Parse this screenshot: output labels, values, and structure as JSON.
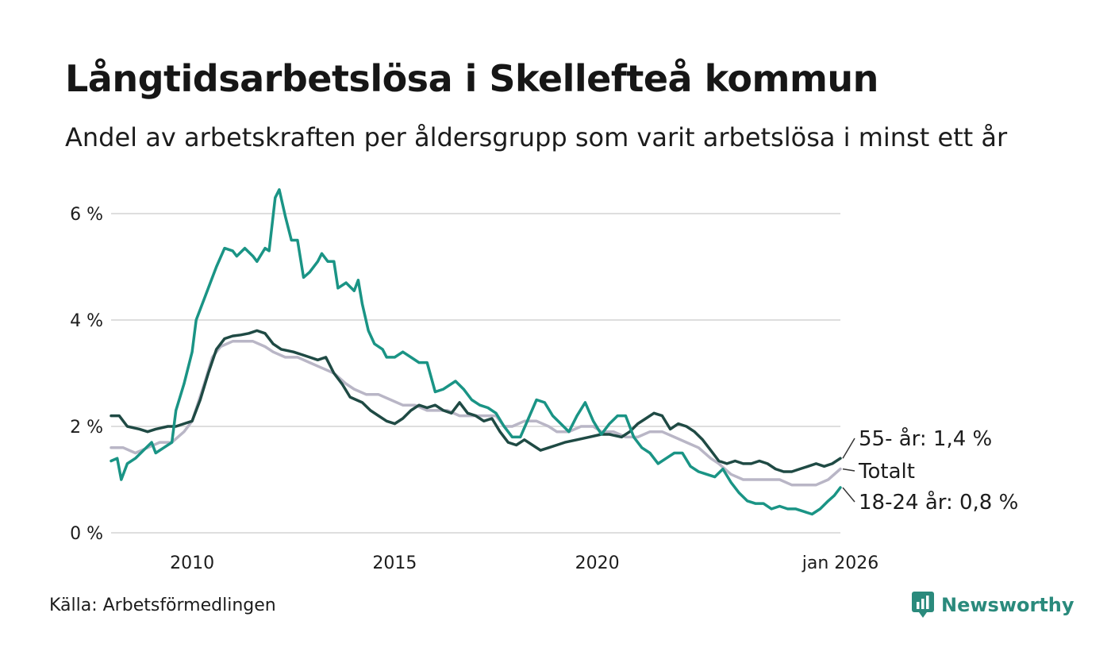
{
  "title": "Långtidsarbetslösa i Skellefteå kommun",
  "subtitle": "Andel av arbetskraften per åldersgrupp som varit arbetslösa i minst ett år",
  "source": "Källa: Arbetsförmedlingen",
  "brand": "Newsworthy",
  "colors": {
    "old": "#1f4a44",
    "young": "#1a9485",
    "total": "#b9b6c6",
    "grid": "#dedede",
    "brand": "#2a8a7c"
  },
  "chart_data": {
    "type": "line",
    "title": "Långtidsarbetslösa i Skellefteå kommun",
    "xlabel": "",
    "ylabel": "",
    "xlim": [
      2008.0,
      2026.0
    ],
    "ylim": [
      0,
      6.6
    ],
    "y_ticks": [
      {
        "value": 0,
        "label": "0 %"
      },
      {
        "value": 2,
        "label": "2 %"
      },
      {
        "value": 4,
        "label": "4 %"
      },
      {
        "value": 6,
        "label": "6 %"
      }
    ],
    "x_ticks": [
      {
        "value": 2010,
        "label": "2010"
      },
      {
        "value": 2015,
        "label": "2015"
      },
      {
        "value": 2020,
        "label": "2020"
      },
      {
        "value": 2026,
        "label": "jan 2026"
      }
    ],
    "series": [
      {
        "name": "Totalt",
        "end_label": "Totalt",
        "color_key": "total",
        "points": [
          [
            2008.0,
            1.6
          ],
          [
            2008.3,
            1.6
          ],
          [
            2008.6,
            1.5
          ],
          [
            2008.9,
            1.6
          ],
          [
            2009.2,
            1.7
          ],
          [
            2009.5,
            1.7
          ],
          [
            2009.8,
            1.9
          ],
          [
            2010.0,
            2.1
          ],
          [
            2010.3,
            2.8
          ],
          [
            2010.5,
            3.3
          ],
          [
            2010.7,
            3.5
          ],
          [
            2011.0,
            3.6
          ],
          [
            2011.3,
            3.6
          ],
          [
            2011.5,
            3.6
          ],
          [
            2011.8,
            3.5
          ],
          [
            2012.0,
            3.4
          ],
          [
            2012.3,
            3.3
          ],
          [
            2012.6,
            3.3
          ],
          [
            2012.9,
            3.2
          ],
          [
            2013.2,
            3.1
          ],
          [
            2013.5,
            3.0
          ],
          [
            2013.8,
            2.8
          ],
          [
            2014.0,
            2.7
          ],
          [
            2014.3,
            2.6
          ],
          [
            2014.6,
            2.6
          ],
          [
            2014.9,
            2.5
          ],
          [
            2015.2,
            2.4
          ],
          [
            2015.5,
            2.4
          ],
          [
            2015.8,
            2.3
          ],
          [
            2016.0,
            2.3
          ],
          [
            2016.3,
            2.3
          ],
          [
            2016.6,
            2.2
          ],
          [
            2016.9,
            2.2
          ],
          [
            2017.2,
            2.2
          ],
          [
            2017.5,
            2.2
          ],
          [
            2017.7,
            2.0
          ],
          [
            2017.9,
            2.0
          ],
          [
            2018.2,
            2.1
          ],
          [
            2018.5,
            2.1
          ],
          [
            2018.8,
            2.0
          ],
          [
            2019.0,
            1.9
          ],
          [
            2019.3,
            1.9
          ],
          [
            2019.6,
            2.0
          ],
          [
            2019.9,
            2.0
          ],
          [
            2020.1,
            1.9
          ],
          [
            2020.4,
            1.9
          ],
          [
            2020.7,
            1.8
          ],
          [
            2021.0,
            1.8
          ],
          [
            2021.3,
            1.9
          ],
          [
            2021.6,
            1.9
          ],
          [
            2021.9,
            1.8
          ],
          [
            2022.2,
            1.7
          ],
          [
            2022.5,
            1.6
          ],
          [
            2022.8,
            1.4
          ],
          [
            2023.0,
            1.3
          ],
          [
            2023.3,
            1.1
          ],
          [
            2023.6,
            1.0
          ],
          [
            2023.9,
            1.0
          ],
          [
            2024.2,
            1.0
          ],
          [
            2024.5,
            1.0
          ],
          [
            2024.8,
            0.9
          ],
          [
            2025.1,
            0.9
          ],
          [
            2025.4,
            0.9
          ],
          [
            2025.7,
            1.0
          ],
          [
            2026.0,
            1.2
          ]
        ]
      },
      {
        "name": "55- år",
        "end_label": "55- år: 1,4 %",
        "color_key": "old",
        "points": [
          [
            2008.0,
            2.2
          ],
          [
            2008.2,
            2.2
          ],
          [
            2008.4,
            2.0
          ],
          [
            2008.7,
            1.95
          ],
          [
            2008.9,
            1.9
          ],
          [
            2009.1,
            1.95
          ],
          [
            2009.4,
            2.0
          ],
          [
            2009.6,
            2.0
          ],
          [
            2009.8,
            2.05
          ],
          [
            2010.0,
            2.1
          ],
          [
            2010.2,
            2.5
          ],
          [
            2010.4,
            3.0
          ],
          [
            2010.6,
            3.45
          ],
          [
            2010.8,
            3.65
          ],
          [
            2011.0,
            3.7
          ],
          [
            2011.2,
            3.72
          ],
          [
            2011.4,
            3.75
          ],
          [
            2011.6,
            3.8
          ],
          [
            2011.8,
            3.75
          ],
          [
            2012.0,
            3.55
          ],
          [
            2012.2,
            3.45
          ],
          [
            2012.5,
            3.4
          ],
          [
            2012.7,
            3.35
          ],
          [
            2012.9,
            3.3
          ],
          [
            2013.1,
            3.25
          ],
          [
            2013.3,
            3.3
          ],
          [
            2013.5,
            3.0
          ],
          [
            2013.7,
            2.8
          ],
          [
            2013.9,
            2.55
          ],
          [
            2014.2,
            2.45
          ],
          [
            2014.4,
            2.3
          ],
          [
            2014.6,
            2.2
          ],
          [
            2014.8,
            2.1
          ],
          [
            2015.0,
            2.05
          ],
          [
            2015.2,
            2.15
          ],
          [
            2015.4,
            2.3
          ],
          [
            2015.6,
            2.4
          ],
          [
            2015.8,
            2.35
          ],
          [
            2016.0,
            2.4
          ],
          [
            2016.2,
            2.3
          ],
          [
            2016.4,
            2.25
          ],
          [
            2016.6,
            2.45
          ],
          [
            2016.8,
            2.25
          ],
          [
            2017.0,
            2.2
          ],
          [
            2017.2,
            2.1
          ],
          [
            2017.4,
            2.15
          ],
          [
            2017.6,
            1.9
          ],
          [
            2017.8,
            1.7
          ],
          [
            2018.0,
            1.65
          ],
          [
            2018.2,
            1.75
          ],
          [
            2018.4,
            1.65
          ],
          [
            2018.6,
            1.55
          ],
          [
            2018.8,
            1.6
          ],
          [
            2019.0,
            1.65
          ],
          [
            2019.2,
            1.7
          ],
          [
            2019.5,
            1.75
          ],
          [
            2019.8,
            1.8
          ],
          [
            2020.1,
            1.85
          ],
          [
            2020.3,
            1.85
          ],
          [
            2020.6,
            1.8
          ],
          [
            2020.8,
            1.9
          ],
          [
            2021.0,
            2.05
          ],
          [
            2021.2,
            2.15
          ],
          [
            2021.4,
            2.25
          ],
          [
            2021.6,
            2.2
          ],
          [
            2021.8,
            1.95
          ],
          [
            2022.0,
            2.05
          ],
          [
            2022.2,
            2.0
          ],
          [
            2022.4,
            1.9
          ],
          [
            2022.6,
            1.75
          ],
          [
            2022.8,
            1.55
          ],
          [
            2023.0,
            1.35
          ],
          [
            2023.2,
            1.3
          ],
          [
            2023.4,
            1.35
          ],
          [
            2023.6,
            1.3
          ],
          [
            2023.8,
            1.3
          ],
          [
            2024.0,
            1.35
          ],
          [
            2024.2,
            1.3
          ],
          [
            2024.4,
            1.2
          ],
          [
            2024.6,
            1.15
          ],
          [
            2024.8,
            1.15
          ],
          [
            2025.0,
            1.2
          ],
          [
            2025.2,
            1.25
          ],
          [
            2025.4,
            1.3
          ],
          [
            2025.6,
            1.25
          ],
          [
            2025.8,
            1.3
          ],
          [
            2026.0,
            1.4
          ]
        ]
      },
      {
        "name": "18-24 år",
        "end_label": "18-24 år: 0,8 %",
        "color_key": "young",
        "points": [
          [
            2008.0,
            1.35
          ],
          [
            2008.15,
            1.4
          ],
          [
            2008.25,
            1.0
          ],
          [
            2008.4,
            1.3
          ],
          [
            2008.6,
            1.4
          ],
          [
            2008.8,
            1.55
          ],
          [
            2009.0,
            1.7
          ],
          [
            2009.1,
            1.5
          ],
          [
            2009.3,
            1.6
          ],
          [
            2009.5,
            1.7
          ],
          [
            2009.6,
            2.3
          ],
          [
            2009.8,
            2.8
          ],
          [
            2010.0,
            3.4
          ],
          [
            2010.1,
            4.0
          ],
          [
            2010.3,
            4.4
          ],
          [
            2010.5,
            4.8
          ],
          [
            2010.6,
            5.0
          ],
          [
            2010.8,
            5.35
          ],
          [
            2011.0,
            5.3
          ],
          [
            2011.1,
            5.2
          ],
          [
            2011.3,
            5.35
          ],
          [
            2011.5,
            5.2
          ],
          [
            2011.6,
            5.1
          ],
          [
            2011.8,
            5.35
          ],
          [
            2011.9,
            5.3
          ],
          [
            2012.05,
            6.3
          ],
          [
            2012.15,
            6.45
          ],
          [
            2012.3,
            5.95
          ],
          [
            2012.45,
            5.5
          ],
          [
            2012.6,
            5.5
          ],
          [
            2012.75,
            4.8
          ],
          [
            2012.9,
            4.9
          ],
          [
            2013.1,
            5.1
          ],
          [
            2013.2,
            5.25
          ],
          [
            2013.35,
            5.1
          ],
          [
            2013.5,
            5.1
          ],
          [
            2013.6,
            4.6
          ],
          [
            2013.8,
            4.7
          ],
          [
            2014.0,
            4.55
          ],
          [
            2014.1,
            4.75
          ],
          [
            2014.2,
            4.3
          ],
          [
            2014.35,
            3.8
          ],
          [
            2014.5,
            3.55
          ],
          [
            2014.7,
            3.45
          ],
          [
            2014.8,
            3.3
          ],
          [
            2015.0,
            3.3
          ],
          [
            2015.2,
            3.4
          ],
          [
            2015.4,
            3.3
          ],
          [
            2015.6,
            3.2
          ],
          [
            2015.8,
            3.2
          ],
          [
            2016.0,
            2.65
          ],
          [
            2016.2,
            2.7
          ],
          [
            2016.5,
            2.85
          ],
          [
            2016.7,
            2.7
          ],
          [
            2016.9,
            2.5
          ],
          [
            2017.1,
            2.4
          ],
          [
            2017.3,
            2.35
          ],
          [
            2017.5,
            2.25
          ],
          [
            2017.7,
            2.0
          ],
          [
            2017.9,
            1.8
          ],
          [
            2018.1,
            1.8
          ],
          [
            2018.3,
            2.15
          ],
          [
            2018.5,
            2.5
          ],
          [
            2018.7,
            2.45
          ],
          [
            2018.9,
            2.2
          ],
          [
            2019.1,
            2.05
          ],
          [
            2019.3,
            1.9
          ],
          [
            2019.5,
            2.2
          ],
          [
            2019.7,
            2.45
          ],
          [
            2019.9,
            2.1
          ],
          [
            2020.1,
            1.85
          ],
          [
            2020.3,
            2.05
          ],
          [
            2020.5,
            2.2
          ],
          [
            2020.7,
            2.2
          ],
          [
            2020.9,
            1.8
          ],
          [
            2021.1,
            1.6
          ],
          [
            2021.3,
            1.5
          ],
          [
            2021.5,
            1.3
          ],
          [
            2021.7,
            1.4
          ],
          [
            2021.9,
            1.5
          ],
          [
            2022.1,
            1.5
          ],
          [
            2022.3,
            1.25
          ],
          [
            2022.5,
            1.15
          ],
          [
            2022.7,
            1.1
          ],
          [
            2022.9,
            1.05
          ],
          [
            2023.1,
            1.2
          ],
          [
            2023.3,
            0.95
          ],
          [
            2023.5,
            0.75
          ],
          [
            2023.7,
            0.6
          ],
          [
            2023.9,
            0.55
          ],
          [
            2024.1,
            0.55
          ],
          [
            2024.3,
            0.45
          ],
          [
            2024.5,
            0.5
          ],
          [
            2024.7,
            0.45
          ],
          [
            2024.9,
            0.45
          ],
          [
            2025.1,
            0.4
          ],
          [
            2025.3,
            0.35
          ],
          [
            2025.5,
            0.45
          ],
          [
            2025.7,
            0.6
          ],
          [
            2025.85,
            0.7
          ],
          [
            2026.0,
            0.85
          ]
        ]
      }
    ]
  }
}
